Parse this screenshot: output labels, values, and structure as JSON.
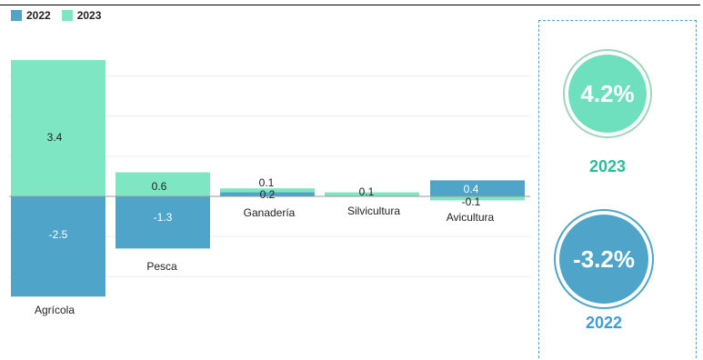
{
  "legend": [
    {
      "label": "2022",
      "color": "#4ea5c9"
    },
    {
      "label": "2023",
      "color": "#7ee6c2"
    }
  ],
  "chart_data": {
    "type": "bar",
    "categories": [
      "Agrícola",
      "Pesca",
      "Ganadería",
      "Silvicultura",
      "Avicultura"
    ],
    "series": [
      {
        "name": "2022",
        "values": [
          -2.5,
          -1.3,
          0.1,
          null,
          0.4
        ],
        "color": "#4ea5c9"
      },
      {
        "name": "2023",
        "values": [
          3.4,
          0.6,
          0.2,
          0.1,
          -0.1
        ],
        "color": "#7ee6c2"
      }
    ],
    "ylim": [
      -2.5,
      3.4
    ],
    "grid": true,
    "legend_position": "top-left"
  },
  "kpis": [
    {
      "value": "4.2%",
      "year": "2023",
      "color": "#6ee0bd",
      "year_color": "#2bbd9a"
    },
    {
      "value": "-3.2%",
      "year": "2022",
      "color": "#4ea5c9",
      "year_color": "#3b9fd6"
    }
  ]
}
